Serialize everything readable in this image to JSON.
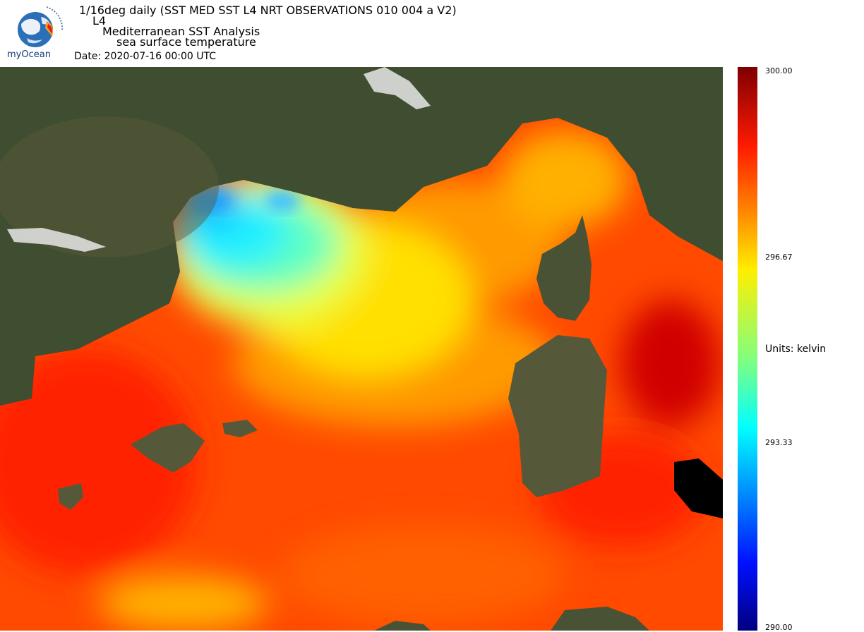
{
  "header": {
    "title_line1": "1/16deg daily (SST MED SST L4 NRT OBSERVATIONS 010 004 a V2)",
    "title_line2": "L4",
    "title_line3": "Mediterranean SST Analysis",
    "title_line4": "sea surface temperature",
    "date_label": "Date:",
    "date_value": "2020-07-16 00:00 UTC"
  },
  "logo": {
    "icon": "myocean-globe-icon",
    "text": "myOcean"
  },
  "map": {
    "layer": "sea-surface-temperature",
    "background": "satellite-imagery"
  },
  "colorbar": {
    "ticks": [
      "300.00",
      "296.67",
      "293.33",
      "290.00"
    ],
    "units_label": "Units: kelvin",
    "colormap": [
      "#7f0000",
      "#ff1a00",
      "#ff8a00",
      "#ffee00",
      "#80ff80",
      "#00ffff",
      "#0088ff",
      "#0010ff",
      "#00007f"
    ]
  }
}
